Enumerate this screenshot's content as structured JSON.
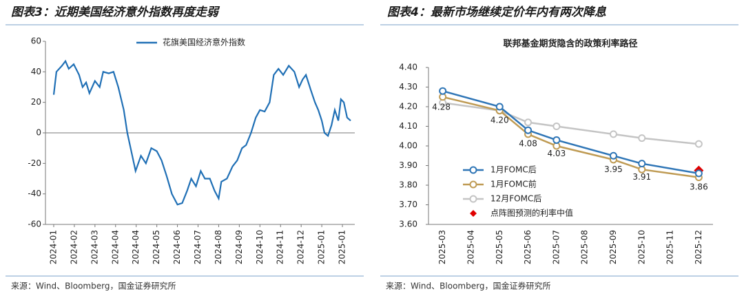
{
  "chart_data": [
    {
      "type": "line",
      "title": "图表3：近期美国经济意外指数再度走弱",
      "source": "来源：Wind、Bloomberg，国金证券研究所",
      "x": [
        0,
        0.13,
        0.4,
        0.57,
        0.73,
        0.97,
        1.23,
        1.4,
        1.57,
        1.73,
        2,
        2.23,
        2.4,
        2.67,
        2.9,
        3.13,
        3.4,
        3.57,
        3.73,
        3.97,
        4.23,
        4.47,
        4.73,
        5,
        5.23,
        5.47,
        5.73,
        6,
        6.23,
        6.47,
        6.67,
        6.9,
        7.13,
        7.33,
        7.57,
        7.8,
        8,
        8.13,
        8.4,
        8.67,
        8.9,
        9.13,
        9.33,
        9.57,
        9.8,
        10,
        10.23,
        10.47,
        10.67,
        10.9,
        11.13,
        11.4,
        11.67,
        11.9,
        12.07,
        12.23,
        12.47,
        12.67,
        12.83,
        13,
        13.13,
        13.3,
        13.47,
        13.63,
        13.8,
        13.93,
        14.07,
        14.23,
        14.4
      ],
      "xlim": [
        -0.4,
        14.6
      ],
      "xticks": [
        {
          "value": 0,
          "label": "2024-01"
        },
        {
          "value": 1,
          "label": "2024-02"
        },
        {
          "value": 2,
          "label": "2024-03"
        },
        {
          "value": 3,
          "label": "2024-04"
        },
        {
          "value": 4,
          "label": "2024-04"
        },
        {
          "value": 5,
          "label": "2024-05"
        },
        {
          "value": 6,
          "label": "2024-06"
        },
        {
          "value": 7,
          "label": "2024-07"
        },
        {
          "value": 8,
          "label": "2024-08"
        },
        {
          "value": 9,
          "label": "2024-09"
        },
        {
          "value": 10,
          "label": "2024-10"
        },
        {
          "value": 11,
          "label": "2024-11"
        },
        {
          "value": 12,
          "label": "2024-12"
        },
        {
          "value": 13,
          "label": "2025-01"
        },
        {
          "value": 14,
          "label": "2025-01"
        }
      ],
      "ylim": [
        -60,
        60
      ],
      "yticks": [
        -60,
        -40,
        -20,
        0,
        20,
        40,
        60
      ],
      "legend": "top",
      "series": [
        {
          "name": "花旗美国经济意外指数",
          "color": "#1f6fb5",
          "values": [
            25,
            40,
            44,
            47,
            42,
            45,
            38,
            30,
            33,
            26,
            34,
            30,
            40,
            39,
            40,
            30,
            15,
            0,
            -10,
            -25,
            -15,
            -20,
            -10,
            -12,
            -18,
            -28,
            -40,
            -47,
            -46,
            -38,
            -30,
            -35,
            -25,
            -30,
            -30,
            -38,
            -43,
            -32,
            -30,
            -22,
            -18,
            -10,
            -8,
            0,
            10,
            15,
            14,
            20,
            38,
            42,
            38,
            44,
            40,
            30,
            35,
            38,
            28,
            20,
            15,
            8,
            0,
            -2,
            5,
            15,
            8,
            22,
            20,
            10,
            8
          ]
        }
      ]
    },
    {
      "type": "line",
      "title": "图表4：最新市场继续定价年内有两次降息",
      "subtitle": "联邦基金期货隐含的政策利率路径",
      "source": "来源：Wind、Bloomberg，国金证券研究所",
      "categories": [
        "2025-03",
        "2025-04",
        "2025-05",
        "2025-06",
        "2025-07",
        "2025-08",
        "2025-09",
        "2025-10",
        "2025-11",
        "2025-12"
      ],
      "ylim": [
        3.6,
        4.4
      ],
      "yticks": [
        {
          "value": 3.6,
          "label": "3.60"
        },
        {
          "value": 3.7,
          "label": "3.70"
        },
        {
          "value": 3.8,
          "label": "3.80"
        },
        {
          "value": 3.9,
          "label": "3.90"
        },
        {
          "value": 4.0,
          "label": "4.00"
        },
        {
          "value": 4.1,
          "label": "4.10"
        },
        {
          "value": 4.2,
          "label": "4.20"
        },
        {
          "value": 4.3,
          "label": "4.30"
        },
        {
          "value": 4.4,
          "label": "4.40"
        }
      ],
      "legend": "lower left",
      "series": [
        {
          "name": "1月FOMC后",
          "color": "#2e75b6",
          "marker": "circle",
          "x": [
            "2025-03",
            "2025-05",
            "2025-06",
            "2025-07",
            "2025-09",
            "2025-10",
            "2025-12"
          ],
          "values": [
            4.28,
            4.2,
            4.08,
            4.03,
            3.95,
            3.91,
            3.86
          ],
          "value_labels": [
            "4.28",
            "4.20",
            "4.08",
            "4.03",
            "3.95",
            "3.91",
            "3.86"
          ]
        },
        {
          "name": "1月FOMC前",
          "color": "#bf9b54",
          "marker": "circle",
          "x": [
            "2025-03",
            "2025-05",
            "2025-06",
            "2025-07",
            "2025-09",
            "2025-10",
            "2025-12"
          ],
          "values": [
            4.25,
            4.18,
            4.06,
            4.0,
            3.93,
            3.88,
            3.84
          ]
        },
        {
          "name": "12月FOMC后",
          "color": "#c4c4c4",
          "marker": "circle",
          "x": [
            "2025-03",
            "2025-05",
            "2025-06",
            "2025-07",
            "2025-09",
            "2025-10",
            "2025-12"
          ],
          "values": [
            4.22,
            4.18,
            4.12,
            4.1,
            4.06,
            4.04,
            4.01
          ]
        },
        {
          "name": "点阵图预测的利率中值",
          "color": "#e00000",
          "marker": "diamond",
          "line": false,
          "x": [
            "2025-12"
          ],
          "values": [
            3.875
          ]
        }
      ]
    }
  ]
}
